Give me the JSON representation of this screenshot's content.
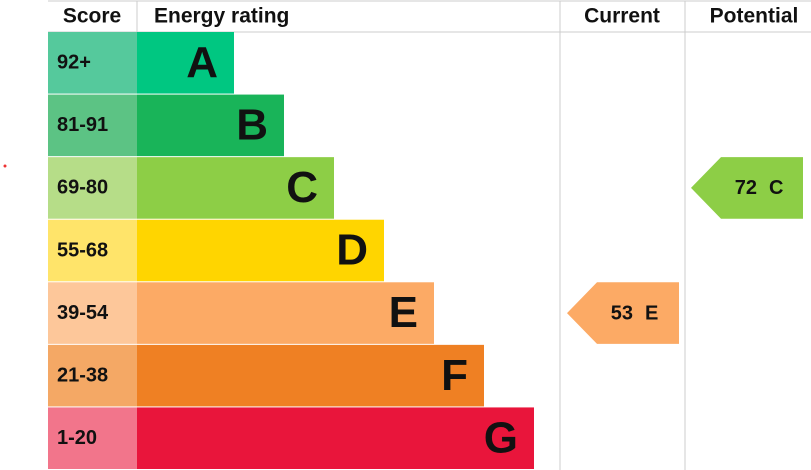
{
  "chart_data": {
    "type": "epc",
    "headers": {
      "score": "Score",
      "rating": "Energy rating",
      "current": "Current",
      "potential": "Potential"
    },
    "bands": [
      {
        "score": "92+",
        "letter": "A",
        "color": "#00c781",
        "score_color": "#55c99c"
      },
      {
        "score": "81-91",
        "letter": "B",
        "color": "#19b459",
        "score_color": "#5cc384"
      },
      {
        "score": "69-80",
        "letter": "C",
        "color": "#8dce46",
        "score_color": "#b6dd88"
      },
      {
        "score": "55-68",
        "letter": "D",
        "color": "#ffd500",
        "score_color": "#ffe46a"
      },
      {
        "score": "39-54",
        "letter": "E",
        "color": "#fcaa65",
        "score_color": "#fdc79a"
      },
      {
        "score": "21-38",
        "letter": "F",
        "color": "#ef8023",
        "score_color": "#f4a865"
      },
      {
        "score": "1-20",
        "letter": "G",
        "color": "#e9153b",
        "score_color": "#f2758b"
      }
    ],
    "current": {
      "value": 53,
      "letter": "E"
    },
    "potential": {
      "value": 72,
      "letter": "C"
    }
  }
}
